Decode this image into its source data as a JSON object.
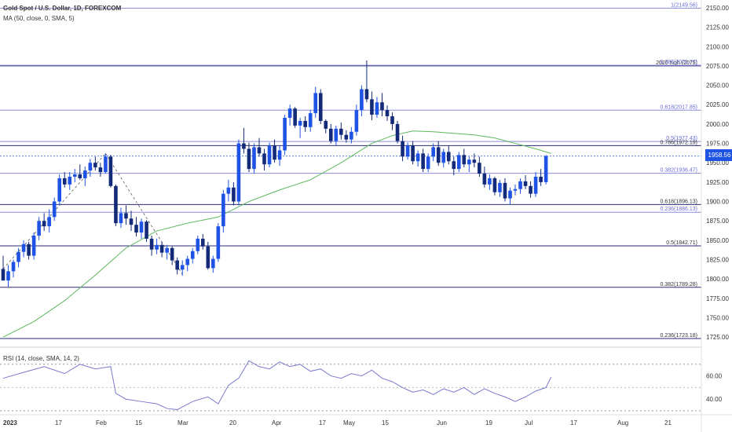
{
  "legend": {
    "title": "Gold Spot / U.S. Dollar, 1D, FOREXCOM",
    "ma": "MA (50, close, 0, SMA, 5)",
    "rsi": "RSI (14, close, SMA, 14, 2)"
  },
  "current_price": "1958.56",
  "colors": {
    "up": "#1e53e5",
    "down": "#132a78",
    "ma": "#5cb85c",
    "rsi": "#7a7acb",
    "fib_line": "#2b2b7a"
  },
  "chart_data": {
    "type": "candlestick",
    "price_axis": {
      "ylim": [
        1712,
        2155
      ],
      "ticks": [
        "2150.00",
        "2125.00",
        "2100.00",
        "2075.00",
        "2050.00",
        "2025.00",
        "2000.00",
        "1975.00",
        "1950.00",
        "1925.00",
        "1900.00",
        "1875.00",
        "1850.00",
        "1825.00",
        "1800.00",
        "1775.00",
        "1750.00",
        "1725.00"
      ]
    },
    "date_axis": {
      "labels": [
        "2023",
        "17",
        "Feb",
        "15",
        "Mar",
        "20",
        "Apr",
        "17",
        "May",
        "15",
        "Jun",
        "19",
        "Jul",
        "17",
        "Aug",
        "21"
      ]
    },
    "fib_levels": [
      {
        "label": "1(2149.56)",
        "value": 2149.56,
        "style": "blue"
      },
      {
        "label": "2020 high (2075)",
        "value": 2075,
        "style": "dark"
      },
      {
        "label": "0.786(2075.77)",
        "value": 2075.77,
        "style": "blue"
      },
      {
        "label": "0.618(2017.85)",
        "value": 2017.85,
        "style": "blue"
      },
      {
        "label": "0.5(1977.43)",
        "value": 1977.43,
        "style": "blue"
      },
      {
        "label": "0.786(1972.19)",
        "value": 1972.19,
        "style": "dark"
      },
      {
        "label": "0.382(1936.47)",
        "value": 1936.47,
        "style": "blue"
      },
      {
        "label": "0.618(1896.13)",
        "value": 1896.13,
        "style": "dark"
      },
      {
        "label": "0.236(1886.13)",
        "value": 1886.13,
        "style": "blue"
      },
      {
        "label": "0.5(1842.71)",
        "value": 1842.71,
        "style": "dark"
      },
      {
        "label": "0.382(1789.28)",
        "value": 1789.28,
        "style": "dark"
      },
      {
        "label": "0.236(1723.18)",
        "value": 1723.18,
        "style": "dark"
      }
    ],
    "candles": [
      [
        1813,
        1830,
        1800,
        1798
      ],
      [
        1798,
        1818,
        1790,
        1810
      ],
      [
        1810,
        1825,
        1802,
        1822
      ],
      [
        1822,
        1840,
        1815,
        1835
      ],
      [
        1835,
        1850,
        1828,
        1845
      ],
      [
        1845,
        1848,
        1825,
        1830
      ],
      [
        1830,
        1860,
        1825,
        1856
      ],
      [
        1856,
        1880,
        1850,
        1875
      ],
      [
        1875,
        1885,
        1862,
        1868
      ],
      [
        1868,
        1890,
        1860,
        1880
      ],
      [
        1880,
        1905,
        1875,
        1900
      ],
      [
        1900,
        1935,
        1895,
        1930
      ],
      [
        1930,
        1938,
        1918,
        1922
      ],
      [
        1922,
        1938,
        1915,
        1932
      ],
      [
        1932,
        1942,
        1925,
        1935
      ],
      [
        1935,
        1948,
        1928,
        1930
      ],
      [
        1930,
        1945,
        1920,
        1940
      ],
      [
        1940,
        1955,
        1932,
        1950
      ],
      [
        1950,
        1958,
        1940,
        1944
      ],
      [
        1944,
        1950,
        1932,
        1938
      ],
      [
        1938,
        1962,
        1936,
        1958
      ],
      [
        1958,
        1960,
        1918,
        1920
      ],
      [
        1920,
        1922,
        1868,
        1872
      ],
      [
        1872,
        1892,
        1866,
        1885
      ],
      [
        1885,
        1895,
        1870,
        1878
      ],
      [
        1878,
        1888,
        1862,
        1870
      ],
      [
        1870,
        1880,
        1855,
        1860
      ],
      [
        1860,
        1878,
        1852,
        1874
      ],
      [
        1874,
        1876,
        1848,
        1852
      ],
      [
        1852,
        1856,
        1830,
        1838
      ],
      [
        1838,
        1852,
        1832,
        1844
      ],
      [
        1844,
        1848,
        1828,
        1834
      ],
      [
        1834,
        1844,
        1825,
        1840
      ],
      [
        1840,
        1842,
        1818,
        1824
      ],
      [
        1824,
        1828,
        1806,
        1812
      ],
      [
        1812,
        1824,
        1804,
        1818
      ],
      [
        1818,
        1830,
        1810,
        1826
      ],
      [
        1826,
        1840,
        1820,
        1836
      ],
      [
        1836,
        1856,
        1832,
        1852
      ],
      [
        1852,
        1858,
        1838,
        1842
      ],
      [
        1842,
        1848,
        1812,
        1814
      ],
      [
        1814,
        1830,
        1808,
        1826
      ],
      [
        1826,
        1872,
        1822,
        1868
      ],
      [
        1868,
        1915,
        1860,
        1910
      ],
      [
        1910,
        1928,
        1900,
        1918
      ],
      [
        1918,
        1925,
        1895,
        1900
      ],
      [
        1900,
        1980,
        1895,
        1975
      ],
      [
        1975,
        1995,
        1962,
        1968
      ],
      [
        1968,
        1976,
        1938,
        1942
      ],
      [
        1942,
        1975,
        1936,
        1970
      ],
      [
        1970,
        1982,
        1958,
        1962
      ],
      [
        1962,
        1968,
        1940,
        1948
      ],
      [
        1948,
        1976,
        1944,
        1972
      ],
      [
        1972,
        1980,
        1950,
        1954
      ],
      [
        1954,
        1972,
        1946,
        1966
      ],
      [
        1966,
        2012,
        1960,
        2008
      ],
      [
        2008,
        2025,
        1998,
        2020
      ],
      [
        2020,
        2022,
        1995,
        1998
      ],
      [
        1998,
        2008,
        1982,
        2004
      ],
      [
        2004,
        2010,
        1990,
        1996
      ],
      [
        1996,
        2018,
        1990,
        2014
      ],
      [
        2014,
        2048,
        2008,
        2040
      ],
      [
        2040,
        2045,
        2000,
        2004
      ],
      [
        2004,
        2006,
        1988,
        1994
      ],
      [
        1994,
        2000,
        1975,
        1978
      ],
      [
        1978,
        1998,
        1972,
        1994
      ],
      [
        1994,
        2002,
        1980,
        1986
      ],
      [
        1986,
        1992,
        1976,
        1980
      ],
      [
        1980,
        1996,
        1975,
        1990
      ],
      [
        1990,
        2025,
        1985,
        2018
      ],
      [
        2018,
        2050,
        2010,
        2045
      ],
      [
        2045,
        2082,
        2028,
        2032
      ],
      [
        2032,
        2042,
        2005,
        2012
      ],
      [
        2012,
        2035,
        2008,
        2028
      ],
      [
        2028,
        2040,
        2010,
        2018
      ],
      [
        2018,
        2024,
        2004,
        2010
      ],
      [
        2010,
        2015,
        1992,
        2000
      ],
      [
        2000,
        2004,
        1975,
        1978
      ],
      [
        1978,
        1985,
        1952,
        1958
      ],
      [
        1958,
        1976,
        1954,
        1972
      ],
      [
        1972,
        1978,
        1948,
        1952
      ],
      [
        1952,
        1966,
        1945,
        1962
      ],
      [
        1962,
        1968,
        1938,
        1942
      ],
      [
        1942,
        1962,
        1938,
        1958
      ],
      [
        1958,
        1975,
        1952,
        1970
      ],
      [
        1970,
        1978,
        1946,
        1950
      ],
      [
        1950,
        1968,
        1944,
        1964
      ],
      [
        1964,
        1972,
        1948,
        1952
      ],
      [
        1952,
        1958,
        1934,
        1942
      ],
      [
        1942,
        1964,
        1938,
        1960
      ],
      [
        1960,
        1968,
        1944,
        1948
      ],
      [
        1948,
        1958,
        1938,
        1954
      ],
      [
        1954,
        1962,
        1944,
        1950
      ],
      [
        1950,
        1958,
        1932,
        1936
      ],
      [
        1936,
        1945,
        1918,
        1922
      ],
      [
        1922,
        1935,
        1915,
        1930
      ],
      [
        1930,
        1932,
        1908,
        1912
      ],
      [
        1912,
        1928,
        1906,
        1924
      ],
      [
        1924,
        1930,
        1900,
        1904
      ],
      [
        1904,
        1918,
        1896,
        1914
      ],
      [
        1914,
        1922,
        1908,
        1916
      ],
      [
        1916,
        1930,
        1910,
        1926
      ],
      [
        1926,
        1934,
        1916,
        1920
      ],
      [
        1920,
        1926,
        1905,
        1910
      ],
      [
        1910,
        1938,
        1906,
        1932
      ],
      [
        1932,
        1942,
        1920,
        1925
      ],
      [
        1925,
        1960,
        1922,
        1958.56
      ]
    ],
    "ma_points": [
      [
        0,
        1725
      ],
      [
        6,
        1745
      ],
      [
        12,
        1772
      ],
      [
        18,
        1805
      ],
      [
        24,
        1840
      ],
      [
        30,
        1862
      ],
      [
        36,
        1872
      ],
      [
        42,
        1880
      ],
      [
        48,
        1900
      ],
      [
        54,
        1915
      ],
      [
        60,
        1928
      ],
      [
        66,
        1950
      ],
      [
        72,
        1975
      ],
      [
        76,
        1985
      ],
      [
        80,
        1991
      ],
      [
        84,
        1990
      ],
      [
        88,
        1988
      ],
      [
        92,
        1986
      ],
      [
        96,
        1982
      ],
      [
        100,
        1975
      ],
      [
        104,
        1968
      ],
      [
        107,
        1962
      ]
    ],
    "rsi_axis": {
      "ylim": [
        28,
        82
      ],
      "ticks": [
        "60.00",
        "40.00"
      ],
      "band": [
        30,
        70
      ]
    },
    "rsi_points": [
      [
        0,
        58
      ],
      [
        4,
        63
      ],
      [
        8,
        68
      ],
      [
        12,
        62
      ],
      [
        15,
        70
      ],
      [
        18,
        66
      ],
      [
        21,
        68
      ],
      [
        22,
        45
      ],
      [
        24,
        40
      ],
      [
        27,
        38
      ],
      [
        30,
        36
      ],
      [
        32,
        32
      ],
      [
        34,
        31
      ],
      [
        37,
        38
      ],
      [
        40,
        42
      ],
      [
        42,
        36
      ],
      [
        44,
        52
      ],
      [
        46,
        58
      ],
      [
        48,
        73
      ],
      [
        50,
        68
      ],
      [
        52,
        66
      ],
      [
        54,
        72
      ],
      [
        56,
        68
      ],
      [
        58,
        70
      ],
      [
        60,
        64
      ],
      [
        62,
        66
      ],
      [
        64,
        60
      ],
      [
        66,
        58
      ],
      [
        68,
        62
      ],
      [
        70,
        60
      ],
      [
        72,
        65
      ],
      [
        74,
        58
      ],
      [
        76,
        55
      ],
      [
        78,
        50
      ],
      [
        80,
        46
      ],
      [
        82,
        48
      ],
      [
        84,
        44
      ],
      [
        86,
        49
      ],
      [
        88,
        46
      ],
      [
        90,
        50
      ],
      [
        92,
        44
      ],
      [
        94,
        49
      ],
      [
        96,
        45
      ],
      [
        98,
        42
      ],
      [
        100,
        38
      ],
      [
        102,
        42
      ],
      [
        104,
        47
      ],
      [
        106,
        50
      ],
      [
        107,
        59
      ]
    ]
  }
}
